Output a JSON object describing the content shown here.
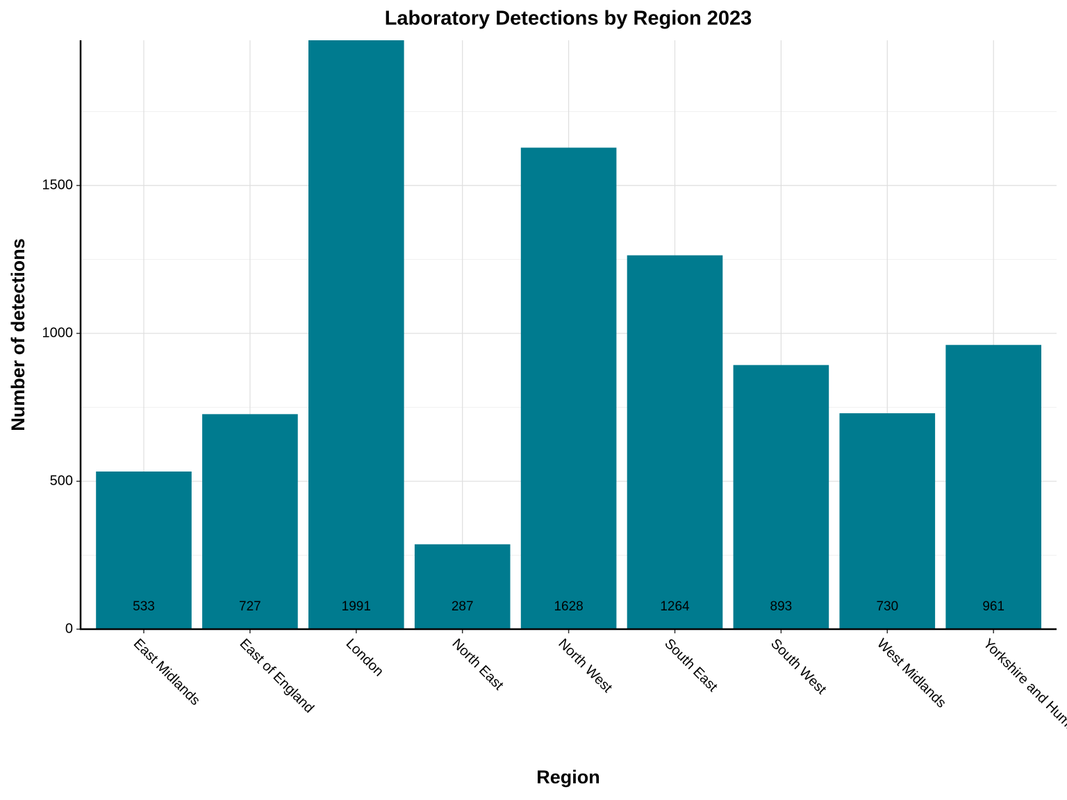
{
  "chart_data": {
    "type": "bar",
    "title": "Laboratory Detections by Region 2023",
    "x_label": "Region",
    "y_label": "Number of detections",
    "categories": [
      "East Midlands",
      "East of England",
      "London",
      "North East",
      "North West",
      "South East",
      "South West",
      "West Midlands",
      "Yorkshire and Humber"
    ],
    "values": [
      533,
      727,
      1991,
      287,
      1628,
      1264,
      893,
      730,
      961
    ],
    "color": "#007b8f",
    "ylim": [
      0,
      1991
    ],
    "yticks": [
      0,
      500,
      1000,
      1500
    ],
    "minor_yticks": [
      250,
      750,
      1250,
      1750
    ],
    "grid": true
  }
}
